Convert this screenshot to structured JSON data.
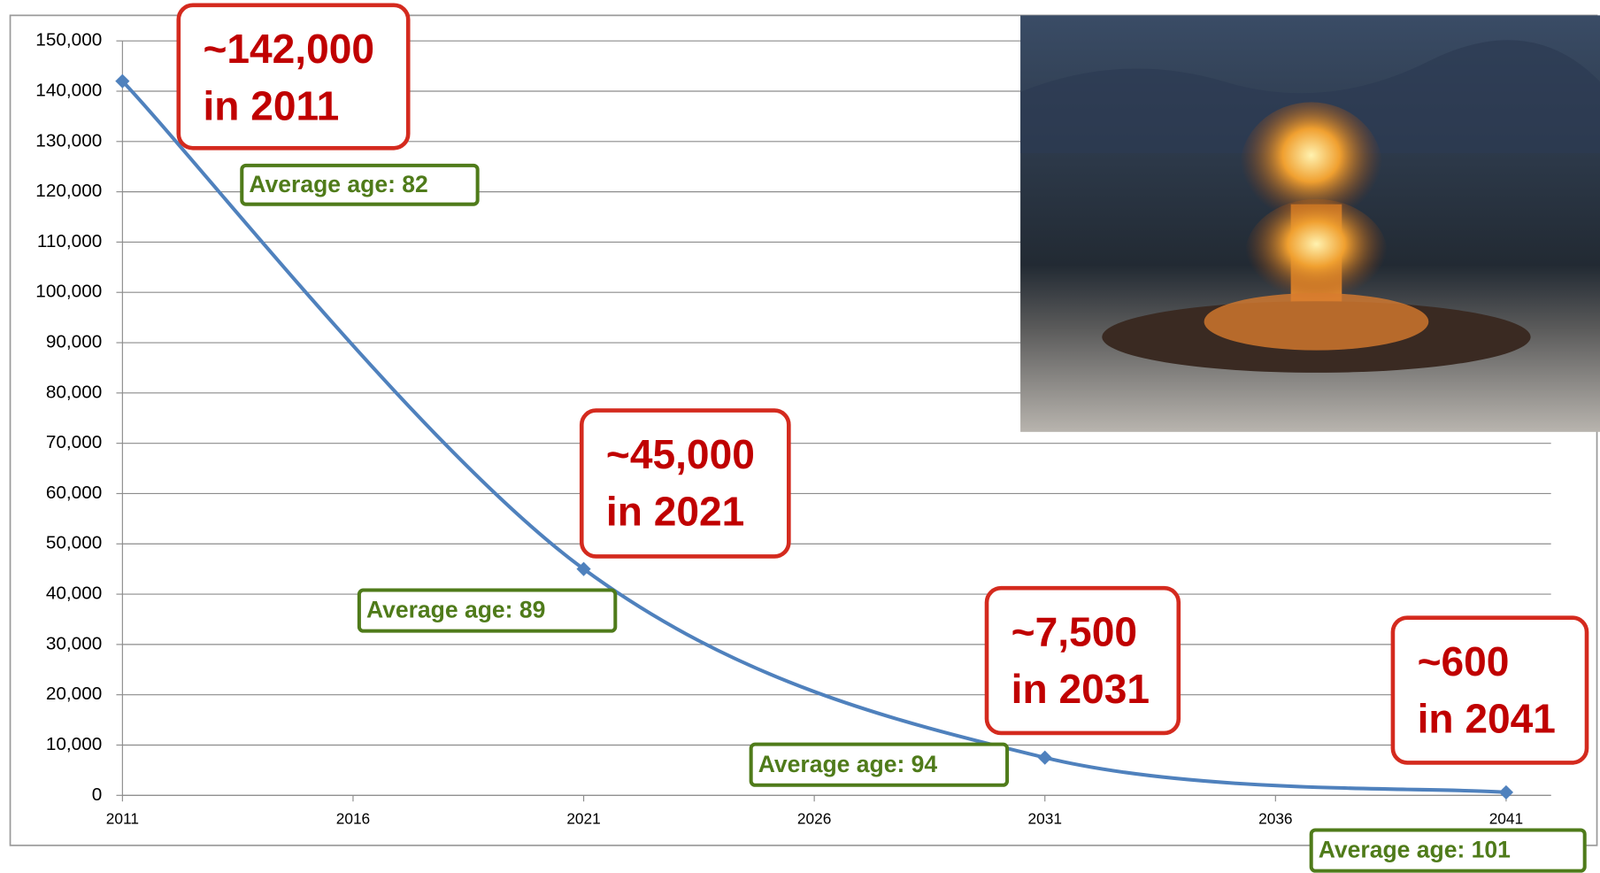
{
  "chart_data": {
    "type": "line",
    "x": [
      2011,
      2021,
      2031,
      2041
    ],
    "series": [
      {
        "color": "#4f81bd",
        "values": [
          142000,
          45000,
          7500,
          600
        ]
      }
    ],
    "xlim": [
      2011,
      2041
    ],
    "xticks": [
      2011,
      2016,
      2021,
      2026,
      2031,
      2036,
      2041
    ],
    "ylim": [
      0,
      150000
    ],
    "yticks": [
      0,
      {
        "value": 10000,
        "label": "10,000"
      },
      {
        "value": 20000,
        "label": "20,000"
      },
      {
        "value": 30000,
        "label": "30,000"
      },
      {
        "value": 40000,
        "label": "40,000"
      },
      {
        "value": 50000,
        "label": "50,000"
      },
      {
        "value": 60000,
        "label": "60,000"
      },
      {
        "value": 70000,
        "label": "70,000"
      },
      {
        "value": 80000,
        "label": "80,000"
      },
      {
        "value": 90000,
        "label": "90,000"
      },
      {
        "value": 100000,
        "label": "100,000"
      },
      {
        "value": 110000,
        "label": "110,000"
      },
      {
        "value": 120000,
        "label": "120,000"
      },
      {
        "value": 130000,
        "label": "130,000"
      },
      {
        "value": 140000,
        "label": "140,000"
      },
      {
        "value": 150000,
        "label": "150,000"
      }
    ],
    "grid": true,
    "count_annotations": [
      [
        "~142,000",
        "in 2011"
      ],
      [
        "~45,000",
        "in 2021"
      ],
      [
        "~7,500",
        "in 2031"
      ],
      [
        "~600",
        "in 2041"
      ]
    ],
    "age_annotations": [
      "Average age:  82",
      "Average age:  89",
      "Average age:  94",
      "Average age:  101"
    ]
  }
}
